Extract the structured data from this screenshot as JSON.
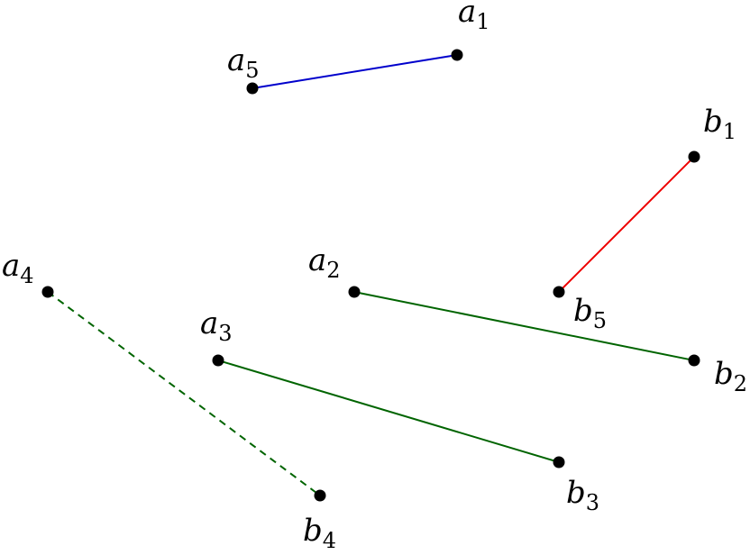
{
  "nodes": [
    {
      "letter": "a",
      "index": 1
    },
    {
      "letter": "a",
      "index": 2
    },
    {
      "letter": "a",
      "index": 3
    },
    {
      "letter": "a",
      "index": 4
    },
    {
      "letter": "a",
      "index": 5
    },
    {
      "letter": "b",
      "index": 1
    },
    {
      "letter": "b",
      "index": 2
    },
    {
      "letter": "b",
      "index": 3
    },
    {
      "letter": "b",
      "index": 4
    },
    {
      "letter": "b",
      "index": 5
    }
  ]
}
